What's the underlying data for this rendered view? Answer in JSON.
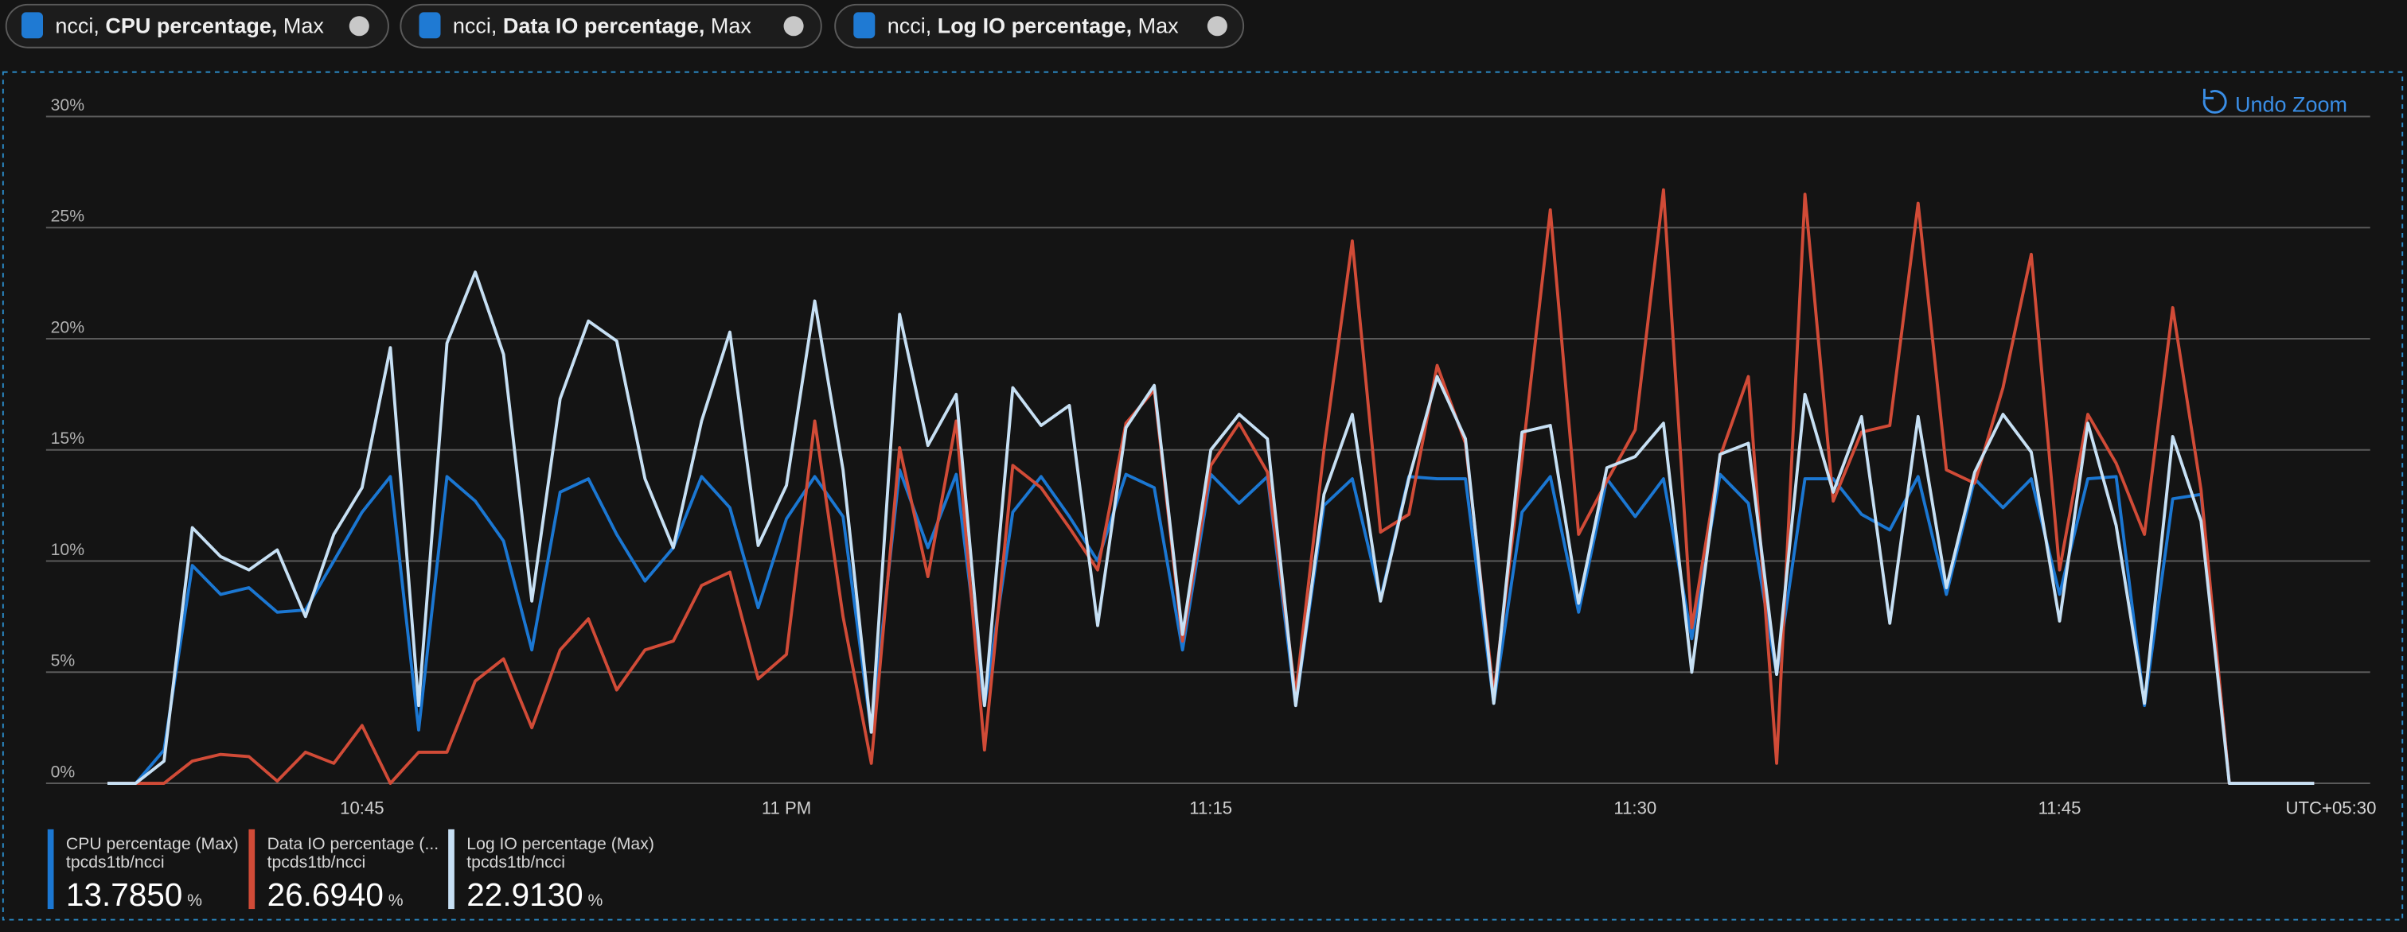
{
  "filters": [
    {
      "resource": "ncci,",
      "metric": "CPU percentage,",
      "aggregation": "Max"
    },
    {
      "resource": "ncci,",
      "metric": "Data IO percentage,",
      "aggregation": "Max"
    },
    {
      "resource": "ncci,",
      "metric": "Log IO percentage,",
      "aggregation": "Max"
    }
  ],
  "undo_zoom": "Undo Zoom",
  "chart_data": {
    "type": "line",
    "timezone": "UTC+05:30",
    "x": [
      "10:36",
      "10:37",
      "10:38",
      "10:39",
      "10:40",
      "10:41",
      "10:42",
      "10:43",
      "10:44",
      "10:45",
      "10:46",
      "10:47",
      "10:48",
      "10:49",
      "10:50",
      "10:51",
      "10:52",
      "10:53",
      "10:54",
      "10:55",
      "10:56",
      "10:57",
      "10:58",
      "10:59",
      "11:00",
      "11:01",
      "11:02",
      "11:03",
      "11:04",
      "11:05",
      "11:06",
      "11:07",
      "11:08",
      "11:09",
      "11:10",
      "11:11",
      "11:12",
      "11:13",
      "11:14",
      "11:15",
      "11:16",
      "11:17",
      "11:18",
      "11:19",
      "11:20",
      "11:21",
      "11:22",
      "11:23",
      "11:24",
      "11:25",
      "11:26",
      "11:27",
      "11:28",
      "11:29",
      "11:30",
      "11:31",
      "11:32",
      "11:33",
      "11:34",
      "11:35",
      "11:36",
      "11:37",
      "11:38",
      "11:39",
      "11:40",
      "11:41",
      "11:42",
      "11:43",
      "11:44",
      "11:45",
      "11:46",
      "11:47",
      "11:48",
      "11:49",
      "11:50",
      "11:51",
      "11:52",
      "11:53",
      "11:54"
    ],
    "xticks": [
      "10:45",
      {
        "value": "11:00",
        "label": "11 PM"
      },
      "11:15",
      "11:30",
      "11:45"
    ],
    "ylim": [
      0,
      30
    ],
    "yticks": [
      {
        "value": 0,
        "label": "0%"
      },
      {
        "value": 5,
        "label": "5%"
      },
      {
        "value": 10,
        "label": "10%"
      },
      {
        "value": 15,
        "label": "15%"
      },
      {
        "value": 20,
        "label": "20%"
      },
      {
        "value": 25,
        "label": "25%"
      },
      {
        "value": 30,
        "label": "30%"
      }
    ],
    "grid": true,
    "series": [
      {
        "name": "CPU percentage (Max)",
        "resource": "tpcds1tb/ncci",
        "summary": "13.7850",
        "summary_unit": "%",
        "color": "#1b77d2",
        "values": [
          0,
          0,
          1.5,
          9.8,
          8.5,
          8.8,
          7.7,
          7.8,
          10,
          12.2,
          13.8,
          2.4,
          13.8,
          12.7,
          10.9,
          6.0,
          13.1,
          13.7,
          11.2,
          9.1,
          10.6,
          13.8,
          12.4,
          7.9,
          11.9,
          13.8,
          12.0,
          2.3,
          14.1,
          10.6,
          13.9,
          3.5,
          12.2,
          13.8,
          12.0,
          10.0,
          13.9,
          13.3,
          6.0,
          13.9,
          12.6,
          13.8,
          3.5,
          12.5,
          13.7,
          8.3,
          13.8,
          13.7,
          13.7,
          3.6,
          12.2,
          13.8,
          7.7,
          13.7,
          12.0,
          13.7,
          6.5,
          13.9,
          12.6,
          4.9,
          13.7,
          13.7,
          12.1,
          11.4,
          13.8,
          8.5,
          13.7,
          12.4,
          13.7,
          8.5,
          13.7,
          13.8,
          3.5,
          12.8,
          13.0,
          0,
          0,
          0,
          0
        ]
      },
      {
        "name": "Data IO percentage (...",
        "resource": "tpcds1tb/ncci",
        "summary": "26.6940",
        "summary_unit": "%",
        "color": "#d14b37",
        "values": [
          0,
          0,
          0,
          1.0,
          1.3,
          1.2,
          0.1,
          1.4,
          0.9,
          2.6,
          0,
          1.4,
          1.4,
          4.6,
          5.6,
          2.5,
          6.0,
          7.4,
          4.2,
          6.0,
          6.4,
          8.9,
          9.5,
          4.7,
          5.8,
          16.3,
          7.5,
          0.9,
          15.1,
          9.3,
          16.3,
          1.5,
          14.3,
          13.3,
          11.5,
          9.6,
          16.2,
          17.7,
          6.4,
          14.3,
          16.2,
          14.0,
          4.0,
          15.0,
          24.4,
          11.3,
          12.1,
          18.8,
          15.3,
          4.0,
          14.6,
          25.8,
          11.2,
          13.6,
          15.9,
          26.7,
          7.0,
          14.7,
          18.3,
          0.9,
          26.5,
          12.7,
          15.8,
          16.1,
          26.1,
          14.1,
          13.5,
          17.8,
          23.8,
          9.6,
          16.6,
          14.4,
          11.2,
          21.4,
          13.2,
          0,
          0,
          0,
          0
        ]
      },
      {
        "name": "Log IO percentage (Max)",
        "resource": "tpcds1tb/ncci",
        "summary": "22.9130",
        "summary_unit": "%",
        "color": "#c7e0f4",
        "values": [
          0,
          0,
          1,
          11.5,
          10.2,
          9.6,
          10.5,
          7.5,
          11.2,
          13.3,
          19.6,
          3.5,
          19.8,
          23.0,
          19.3,
          8.2,
          17.3,
          20.8,
          19.9,
          13.7,
          10.6,
          16.3,
          20.3,
          10.7,
          13.4,
          21.7,
          14.1,
          2.3,
          21.1,
          15.2,
          17.5,
          3.5,
          17.8,
          16.1,
          17.0,
          7.1,
          16.0,
          17.9,
          6.7,
          15.0,
          16.6,
          15.5,
          3.5,
          13.0,
          16.6,
          8.2,
          13.7,
          18.3,
          15.5,
          3.6,
          15.8,
          16.1,
          8.1,
          14.2,
          14.7,
          16.2,
          5.0,
          14.8,
          15.3,
          4.9,
          17.5,
          13.1,
          16.5,
          7.2,
          16.5,
          8.8,
          14.0,
          16.6,
          14.9,
          7.3,
          16.2,
          11.6,
          3.6,
          15.6,
          11.8,
          0,
          0,
          0,
          0
        ]
      }
    ]
  }
}
